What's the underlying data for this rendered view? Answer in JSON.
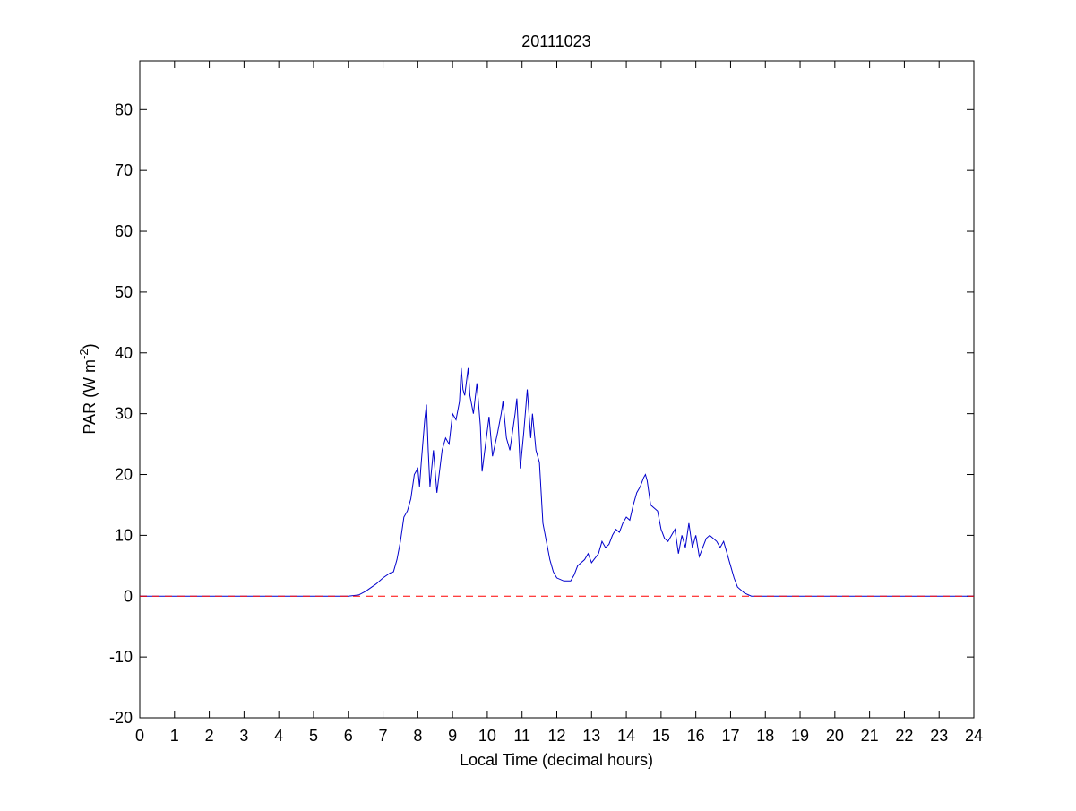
{
  "chart_data": {
    "type": "line",
    "title": "20111023",
    "xlabel": "Local Time (decimal hours)",
    "ylabel": [
      "PAR (W m",
      "-2",
      ")"
    ],
    "xlim": [
      0,
      24
    ],
    "xticks": [
      0,
      1,
      2,
      3,
      4,
      5,
      6,
      7,
      8,
      9,
      10,
      11,
      12,
      13,
      14,
      15,
      16,
      17,
      18,
      19,
      20,
      21,
      22,
      23,
      24
    ],
    "ylim": [
      -20,
      88
    ],
    "yticks": [
      -20,
      -10,
      0,
      10,
      20,
      30,
      40,
      50,
      60,
      70,
      80
    ],
    "grid": false,
    "series": [
      {
        "color": "#0000cc",
        "dashed": false,
        "x": [
          0,
          6.0,
          6.3,
          6.5,
          6.8,
          7.0,
          7.2,
          7.3,
          7.4,
          7.5,
          7.6,
          7.7,
          7.8,
          7.9,
          8.0,
          8.05,
          8.1,
          8.2,
          8.25,
          8.3,
          8.35,
          8.45,
          8.55,
          8.7,
          8.8,
          8.9,
          9.0,
          9.1,
          9.2,
          9.25,
          9.3,
          9.35,
          9.45,
          9.5,
          9.6,
          9.7,
          9.8,
          9.85,
          9.95,
          10.05,
          10.15,
          10.3,
          10.4,
          10.45,
          10.55,
          10.65,
          10.8,
          10.85,
          10.95,
          11.05,
          11.15,
          11.25,
          11.3,
          11.35,
          11.4,
          11.5,
          11.6,
          11.7,
          11.8,
          11.9,
          12.0,
          12.2,
          12.4,
          12.5,
          12.6,
          12.8,
          12.9,
          13.0,
          13.2,
          13.3,
          13.4,
          13.5,
          13.6,
          13.7,
          13.8,
          13.9,
          14.0,
          14.1,
          14.2,
          14.3,
          14.4,
          14.5,
          14.55,
          14.6,
          14.7,
          14.8,
          14.9,
          15.0,
          15.1,
          15.2,
          15.3,
          15.4,
          15.5,
          15.6,
          15.7,
          15.8,
          15.9,
          16.0,
          16.1,
          16.2,
          16.3,
          16.4,
          16.5,
          16.6,
          16.7,
          16.8,
          16.9,
          17.0,
          17.1,
          17.2,
          17.4,
          17.6,
          24
        ],
        "values": [
          0,
          0,
          0.2,
          0.8,
          2,
          3,
          3.8,
          4,
          6,
          9,
          13,
          14,
          16,
          20,
          21,
          18,
          22,
          29,
          31.5,
          24,
          18,
          24,
          17,
          24,
          26,
          25,
          30,
          29,
          32,
          37.5,
          34,
          33,
          37.5,
          33,
          30,
          35,
          28,
          20.5,
          25,
          29.5,
          23,
          27,
          30,
          32,
          26,
          24,
          30,
          32.5,
          21,
          27,
          34,
          26,
          30,
          27,
          24,
          22,
          12,
          9,
          6,
          4,
          3,
          2.5,
          2.5,
          3.5,
          5,
          6,
          7,
          5.5,
          7,
          9,
          8,
          8.5,
          10,
          11,
          10.5,
          12,
          13,
          12.5,
          15,
          17,
          18,
          19.5,
          20,
          19,
          15,
          14.5,
          14,
          11,
          9.5,
          9,
          10,
          11,
          7,
          10,
          8,
          12,
          8,
          10,
          6.5,
          8,
          9.5,
          10,
          9.5,
          9,
          8,
          9,
          7,
          5,
          3,
          1.5,
          0.5,
          0,
          0
        ]
      },
      {
        "color": "#ff0000",
        "dashed": true,
        "x": [
          0,
          24
        ],
        "values": [
          0,
          0
        ]
      }
    ]
  }
}
